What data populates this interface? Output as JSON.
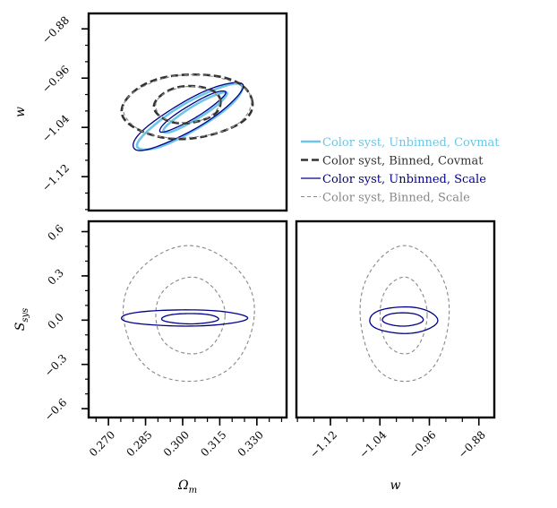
{
  "chart_data": {
    "type": "corner",
    "legend_position": "right, beside top-left panel",
    "series": [
      {
        "name": "Color syst, Unbinned, Covmat",
        "color": "#6ec6e6",
        "style": "solid-thick"
      },
      {
        "name": "Color syst, Binned, Covmat",
        "color": "#333333",
        "style": "dashed-thick"
      },
      {
        "name": "Color syst, Unbinned, Scale",
        "color": "#00008b",
        "style": "solid"
      },
      {
        "name": "Color syst, Binned, Scale",
        "color": "#888888",
        "style": "dashed"
      }
    ],
    "parameters": {
      "omega_m": {
        "label": "Ω",
        "sub": "m",
        "range": [
          0.262,
          0.342
        ],
        "ticks": [
          "0.270",
          "0.285",
          "0.300",
          "0.315",
          "0.330"
        ],
        "tick_values": [
          0.27,
          0.285,
          0.3,
          0.315,
          0.33
        ]
      },
      "w": {
        "label": "w",
        "sub": "",
        "range": [
          -1.175,
          -0.855
        ],
        "ticks": [
          "−1.12",
          "−1.04",
          "−0.96",
          "−0.88"
        ],
        "tick_values": [
          -1.12,
          -1.04,
          -0.96,
          -0.88
        ]
      },
      "s_sys": {
        "label": "S",
        "sub": "sys",
        "range": [
          -0.66,
          0.67
        ],
        "ticks": [
          "−0.6",
          "−0.3",
          "0.0",
          "0.3",
          "0.6"
        ],
        "tick_values": [
          -0.6,
          -0.3,
          0.0,
          0.3,
          0.6
        ]
      }
    },
    "panels": [
      {
        "id": "w_vs_omega_m",
        "x": "omega_m",
        "y": "w",
        "contours": [
          {
            "series": 0,
            "cx": 0.303,
            "cy": -1.023,
            "rx": 0.0245,
            "ry": 0.0225,
            "rot_deg": -30.5
          },
          {
            "series": 0,
            "cx": 0.305,
            "cy": -1.016,
            "rx": 0.015,
            "ry": 0.0105,
            "rot_deg": -31.5
          },
          {
            "series": 2,
            "cx": 0.302,
            "cy": -1.022,
            "rx": 0.0255,
            "ry": 0.0235,
            "rot_deg": -30
          },
          {
            "series": 2,
            "cx": 0.304,
            "cy": -1.014,
            "rx": 0.0155,
            "ry": 0.011,
            "rot_deg": -31
          },
          {
            "series": 1,
            "cx": 0.302,
            "cy": -1.006,
            "rx": 0.0265,
            "ry": 0.052,
            "rot_deg": -4
          },
          {
            "series": 1,
            "cx": 0.302,
            "cy": -1.003,
            "rx": 0.0135,
            "ry": 0.03,
            "rot_deg": -5
          },
          {
            "series": 3,
            "cx": 0.302,
            "cy": -1.006,
            "rx": 0.026,
            "ry": 0.051,
            "rot_deg": -4
          },
          {
            "series": 3,
            "cx": 0.302,
            "cy": -1.003,
            "rx": 0.013,
            "ry": 0.029,
            "rot_deg": -5
          }
        ]
      },
      {
        "id": "s_sys_vs_omega_m",
        "x": "omega_m",
        "y": "s_sys",
        "contours": [
          {
            "series": 3,
            "cx": 0.3025,
            "cy": 0.04,
            "rx": 0.0265,
            "ry": 0.46,
            "rot_deg": 0
          },
          {
            "series": 3,
            "cx": 0.303,
            "cy": 0.03,
            "rx": 0.014,
            "ry": 0.26,
            "rot_deg": 0
          },
          {
            "series": 2,
            "cx": 0.3005,
            "cy": 0.015,
            "rx": 0.0255,
            "ry": 0.055,
            "rot_deg": 0
          },
          {
            "series": 2,
            "cx": 0.303,
            "cy": 0.01,
            "rx": 0.0115,
            "ry": 0.035,
            "rot_deg": 0
          }
        ]
      },
      {
        "id": "s_sys_vs_w",
        "x": "w",
        "y": "s_sys",
        "contours": [
          {
            "series": 3,
            "cx": -1.0,
            "cy": 0.04,
            "rx": 0.072,
            "ry": 0.46,
            "rot_deg": 0
          },
          {
            "series": 3,
            "cx": -1.002,
            "cy": 0.03,
            "rx": 0.038,
            "ry": 0.26,
            "rot_deg": 0
          },
          {
            "series": 2,
            "cx": -1.002,
            "cy": 0.0,
            "rx": 0.055,
            "ry": 0.09,
            "rot_deg": 0
          },
          {
            "series": 2,
            "cx": -1.003,
            "cy": 0.005,
            "rx": 0.033,
            "ry": 0.045,
            "rot_deg": 0
          }
        ]
      }
    ]
  }
}
